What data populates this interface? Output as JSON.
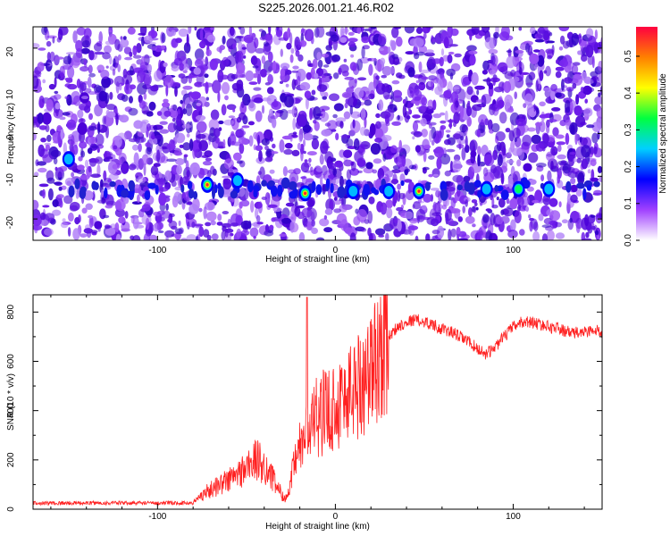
{
  "title": "S225.2026.001.21.46.R02",
  "chart_data": [
    {
      "type": "heatmap",
      "xlabel": "Height of straight line (km)",
      "ylabel": "Frequency (Hz)",
      "xlim": [
        -170,
        150
      ],
      "ylim": [
        -25,
        25
      ],
      "x_ticks": [
        "-100",
        "0",
        "100"
      ],
      "y_ticks": [
        "-20",
        "-10",
        "0",
        "10",
        "20"
      ],
      "colorbar": {
        "label": "Normalized spectral amplitude",
        "range": [
          0,
          0.58
        ],
        "ticks": [
          "0.0",
          "0.1",
          "0.2",
          "0.3",
          "0.4",
          "0.5"
        ],
        "colors": [
          "#ffffff",
          "#a040ff",
          "#0000ff",
          "#00d0ff",
          "#00ff40",
          "#ffff00",
          "#ff8000",
          "#ff0040"
        ]
      },
      "background_color": "#8a3aee",
      "peak_band_freq_hz": -13,
      "peaks": [
        {
          "x": -72,
          "y": -12,
          "v": 0.45
        },
        {
          "x": -17,
          "y": -14,
          "v": 0.42
        },
        {
          "x": 47,
          "y": -13.5,
          "v": 0.44
        },
        {
          "x": 103,
          "y": -13,
          "v": 0.3
        },
        {
          "x": 30,
          "y": -13.5,
          "v": 0.18
        },
        {
          "x": 10,
          "y": -13.5,
          "v": 0.16
        },
        {
          "x": 85,
          "y": -13,
          "v": 0.2
        },
        {
          "x": 120,
          "y": -13,
          "v": 0.16
        },
        {
          "x": -55,
          "y": -11,
          "v": 0.14
        },
        {
          "x": -150,
          "y": -6,
          "v": 0.12
        }
      ]
    },
    {
      "type": "line",
      "xlabel": "Height of straight line (km)",
      "ylabel": "SNR (10 * v/v)",
      "xlim": [
        -170,
        150
      ],
      "ylim": [
        0,
        870
      ],
      "x_ticks": [
        "-100",
        "0",
        "100"
      ],
      "y_ticks": [
        "0",
        "200",
        "400",
        "600",
        "800"
      ],
      "color": "#ff2020",
      "envelope": [
        [
          -170,
          25
        ],
        [
          -100,
          25
        ],
        [
          -80,
          25
        ],
        [
          -75,
          60
        ],
        [
          -65,
          100
        ],
        [
          -55,
          140
        ],
        [
          -45,
          200
        ],
        [
          -40,
          180
        ],
        [
          -35,
          120
        ],
        [
          -30,
          60
        ],
        [
          -27,
          40
        ],
        [
          -24,
          150
        ],
        [
          -20,
          250
        ],
        [
          -15,
          320
        ],
        [
          -10,
          380
        ],
        [
          -5,
          400
        ],
        [
          0,
          420
        ],
        [
          5,
          450
        ],
        [
          10,
          490
        ],
        [
          15,
          520
        ],
        [
          20,
          560
        ],
        [
          25,
          640
        ],
        [
          30,
          700
        ],
        [
          35,
          740
        ],
        [
          40,
          760
        ],
        [
          45,
          770
        ],
        [
          50,
          760
        ],
        [
          55,
          750
        ],
        [
          60,
          730
        ],
        [
          65,
          720
        ],
        [
          70,
          700
        ],
        [
          75,
          680
        ],
        [
          80,
          650
        ],
        [
          85,
          630
        ],
        [
          90,
          660
        ],
        [
          95,
          700
        ],
        [
          100,
          740
        ],
        [
          105,
          760
        ],
        [
          110,
          760
        ],
        [
          115,
          750
        ],
        [
          120,
          740
        ],
        [
          125,
          735
        ],
        [
          130,
          720
        ],
        [
          135,
          715
        ],
        [
          140,
          720
        ],
        [
          145,
          725
        ],
        [
          150,
          720
        ]
      ],
      "spike": {
        "x": -16,
        "y": 860
      }
    }
  ]
}
